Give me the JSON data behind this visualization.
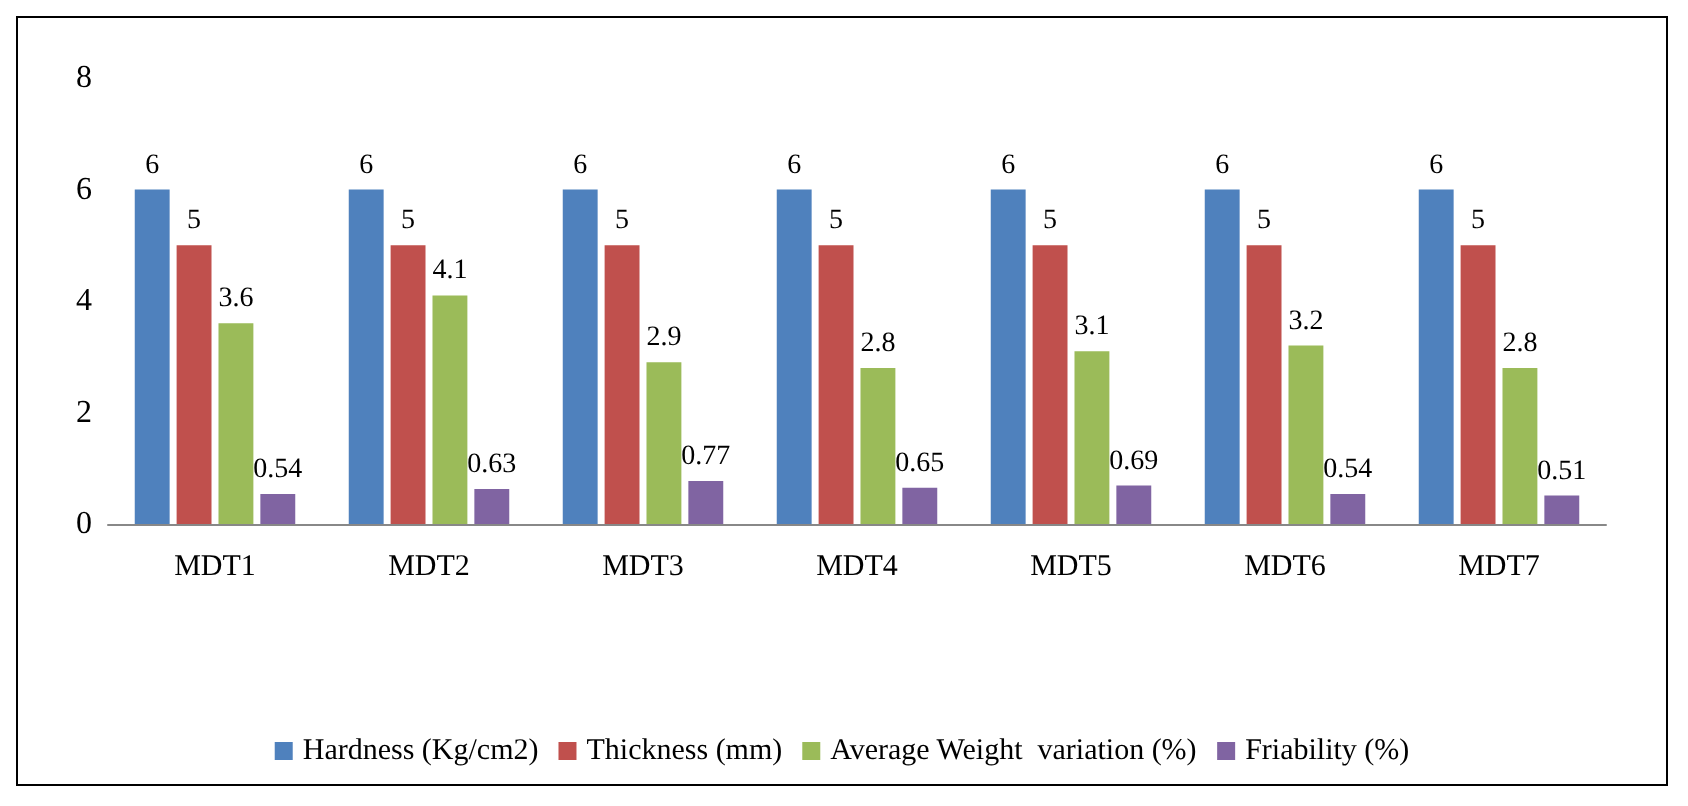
{
  "chart_data": {
    "type": "bar",
    "categories": [
      "MDT1",
      "MDT2",
      "MDT3",
      "MDT4",
      "MDT5",
      "MDT6",
      "MDT7"
    ],
    "series": [
      {
        "name": "Hardness (Kg/cm2)",
        "color": "#4f81bd",
        "values": [
          6,
          6,
          6,
          6,
          6,
          6,
          6
        ]
      },
      {
        "name": "Thickness (mm)",
        "color": "#c0504d",
        "values": [
          5,
          5,
          5,
          5,
          5,
          5,
          5
        ]
      },
      {
        "name": "Average Weight  variation (%)",
        "color": "#9bbb59",
        "values": [
          3.6,
          4.1,
          2.9,
          2.8,
          3.1,
          3.2,
          2.8
        ]
      },
      {
        "name": "Friability (%)",
        "color": "#8064a2",
        "values": [
          0.54,
          0.63,
          0.77,
          0.65,
          0.69,
          0.54,
          0.51
        ]
      }
    ],
    "ylim": [
      0,
      8
    ],
    "yticks": [
      0,
      2,
      4,
      6,
      8
    ],
    "grid": false,
    "legend": "bottom",
    "data_labels": true
  }
}
